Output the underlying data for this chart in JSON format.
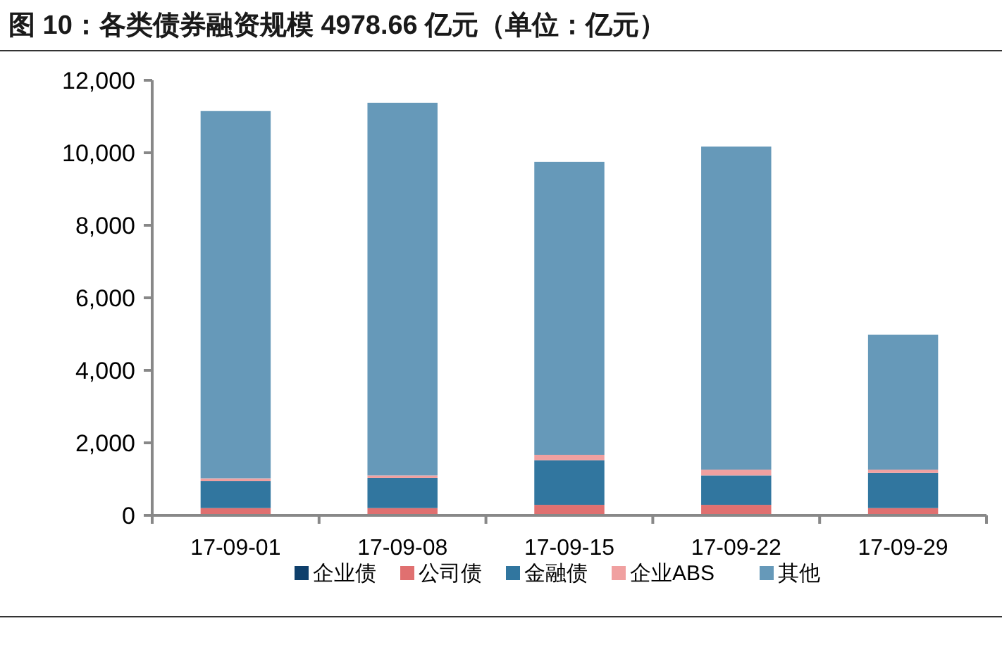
{
  "chart_data": {
    "type": "bar",
    "stacked": true,
    "title": "图 10：各类债券融资规模 4978.66 亿元（单位：亿元）",
    "categories": [
      "17-09-01",
      "17-09-08",
      "17-09-15",
      "17-09-22",
      "17-09-29"
    ],
    "series": [
      {
        "name": "企业债",
        "color": "#0e3f6b",
        "values": [
          0,
          0,
          0,
          0,
          0
        ]
      },
      {
        "name": "公司债",
        "color": "#e07070",
        "values": [
          200,
          200,
          290,
          290,
          200
        ]
      },
      {
        "name": "金融债",
        "color": "#31769f",
        "values": [
          750,
          830,
          1230,
          810,
          970
        ]
      },
      {
        "name": "企业ABS",
        "color": "#f0a0a0",
        "values": [
          70,
          70,
          150,
          160,
          90
        ]
      },
      {
        "name": "其他",
        "color": "#6699b9",
        "values": [
          10130,
          10280,
          8080,
          8910,
          3720
        ]
      }
    ],
    "ylim": [
      0,
      12000
    ],
    "yticks": [
      0,
      {
        "value": 2000,
        "label": "2,000"
      },
      {
        "value": 4000,
        "label": "4,000"
      },
      {
        "value": 6000,
        "label": "6,000"
      },
      {
        "value": 8000,
        "label": "8,000"
      },
      {
        "value": 10000,
        "label": "10,000"
      },
      {
        "value": 12000,
        "label": "12,000"
      }
    ],
    "grid": false,
    "legend": "bottom"
  }
}
